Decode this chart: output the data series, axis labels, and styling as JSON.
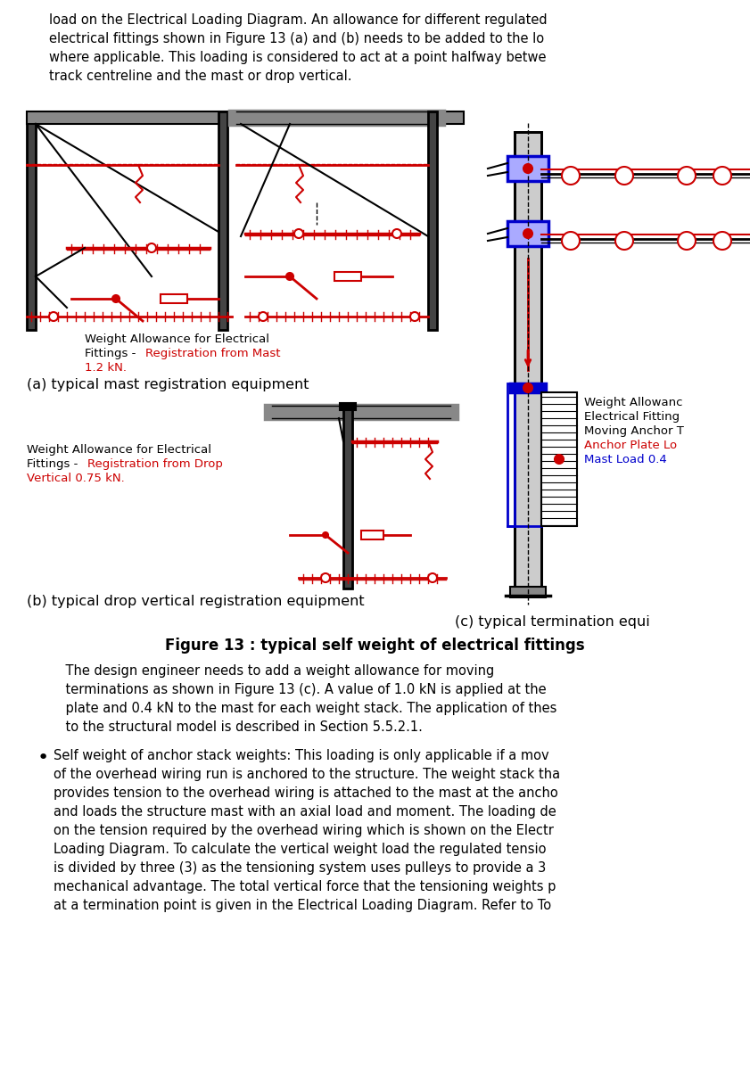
{
  "bg_color": "#ffffff",
  "top_paragraph_lines": [
    "load on the Electrical Loading Diagram. An allowance for different regulated",
    "electrical fittings shown in Figure 13 (a) and (b) needs to be added to the lo",
    "where applicable. This loading is considered to act at a point halfway betwe",
    "track centreline and the mast or drop vertical."
  ],
  "label_a_line1": "Weight Allowance for Electrical",
  "label_a_line2": "Fittings - ",
  "label_a_red": "Registration from Mast",
  "label_a_kn": "1.2 kN.",
  "caption_a": "(a) typical mast registration equipment",
  "label_b_line1": "Weight Allowance for Electrical",
  "label_b_line2": "Fittings - ",
  "label_b_red1": "Registration from Drop",
  "label_b_red2": "Vertical 0.75 kN.",
  "caption_b": "(b) typical drop vertical registration equipment",
  "label_c_line1": "Weight Allowanc",
  "label_c_line2": "Electrical Fitting",
  "label_c_line3": "Moving Anchor T",
  "label_c_red": "Anchor Plate Lo",
  "label_c_blue": "Mast Load 0.4",
  "caption_c": "(c) typical termination equi",
  "figure_caption": "Figure 13 : typical self weight of electrical fittings",
  "para1_lines": [
    "    The design engineer needs to add a weight allowance for moving",
    "    terminations as shown in Figure 13 (c). A value of 1.0 kN is applied at the",
    "    plate and 0.4 kN to the mast for each weight stack. The application of thes",
    "    to the structural model is described in Section 5.5.2.1."
  ],
  "bullet1_lines": [
    "Self weight of anchor stack weights: This loading is only applicable if a mov",
    "of the overhead wiring run is anchored to the structure. The weight stack tha",
    "provides tension to the overhead wiring is attached to the mast at the ancho",
    "and loads the structure mast with an axial load and moment. The loading de",
    "on the tension required by the overhead wiring which is shown on the Electr",
    "Loading Diagram. To calculate the vertical weight load the regulated tensio",
    "is divided by three (3) as the tensioning system uses pulleys to provide a 3",
    "mechanical advantage. The total vertical force that the tensioning weights p",
    "at a termination point is given in the Electrical Loading Diagram. Refer to To"
  ],
  "text_color": "#000000",
  "red_color": "#cc0000",
  "blue_color": "#0000cc",
  "dark_gray": "#444444",
  "mid_gray": "#888888",
  "light_gray": "#cccccc"
}
